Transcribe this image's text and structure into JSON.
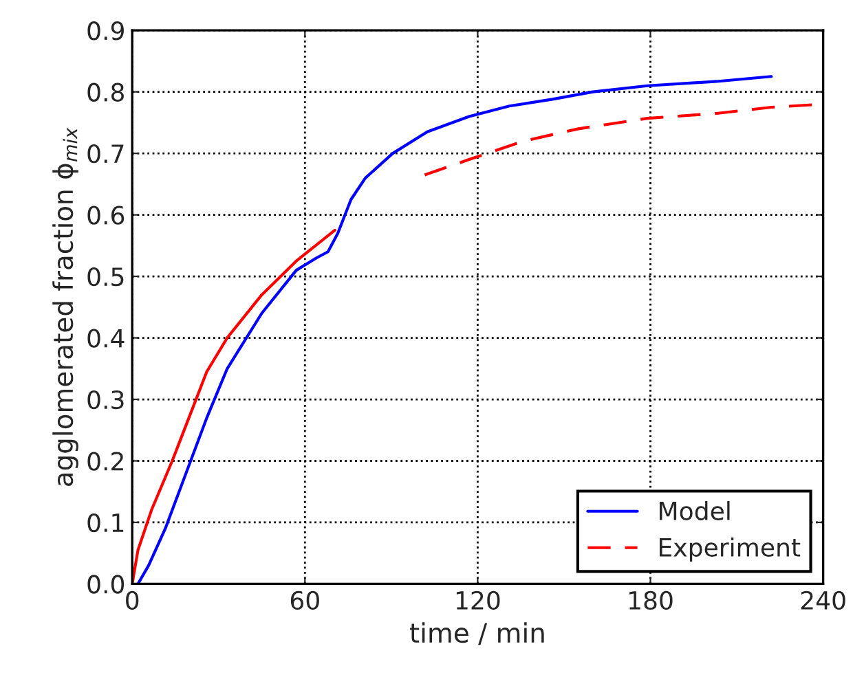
{
  "chart_data": {
    "type": "line",
    "xlabel": "time / min",
    "ylabel": "agglomerated fraction ϕ$_{mix}$",
    "xlim": [
      0,
      240
    ],
    "ylim": [
      0.0,
      0.9
    ],
    "xticks": [
      0,
      60,
      120,
      180,
      240
    ],
    "yticks": [
      {
        "value": 0,
        "label": "0.0"
      },
      0.1,
      0.2,
      0.3,
      0.4,
      0.5,
      0.6,
      0.7,
      0.8,
      0.9
    ],
    "grid": true,
    "legend": "bottom right",
    "series": [
      {
        "name": "Model",
        "color": "#0000ff",
        "line_style": "solid",
        "x": [
          2,
          5.7,
          11.5,
          18.7,
          25.9,
          33,
          45,
          57,
          64,
          68,
          71.4,
          76,
          81,
          90.5,
          102.5,
          117,
          131,
          146,
          160,
          179,
          203,
          222
        ],
        "values": [
          0,
          0.03,
          0.09,
          0.18,
          0.27,
          0.35,
          0.44,
          0.51,
          0.53,
          0.54,
          0.57,
          0.625,
          0.66,
          0.7,
          0.735,
          0.76,
          0.777,
          0.788,
          0.8,
          0.81,
          0.817,
          0.825
        ]
      },
      {
        "color": "#ff0000",
        "line_style": "solid",
        "x": [
          0,
          2,
          6.7,
          13.9,
          25.9,
          33,
          45,
          57,
          70.4
        ],
        "values": [
          0,
          0.055,
          0.12,
          0.2,
          0.345,
          0.4,
          0.47,
          0.525,
          0.575
        ]
      },
      {
        "name": "Experiment",
        "color": "#ff0000",
        "line_style": "dashed",
        "x": [
          101.6,
          117,
          136,
          155,
          179,
          203,
          222,
          240
        ],
        "values": [
          0.665,
          0.69,
          0.72,
          0.74,
          0.757,
          0.765,
          0.775,
          0.78
        ]
      }
    ]
  }
}
